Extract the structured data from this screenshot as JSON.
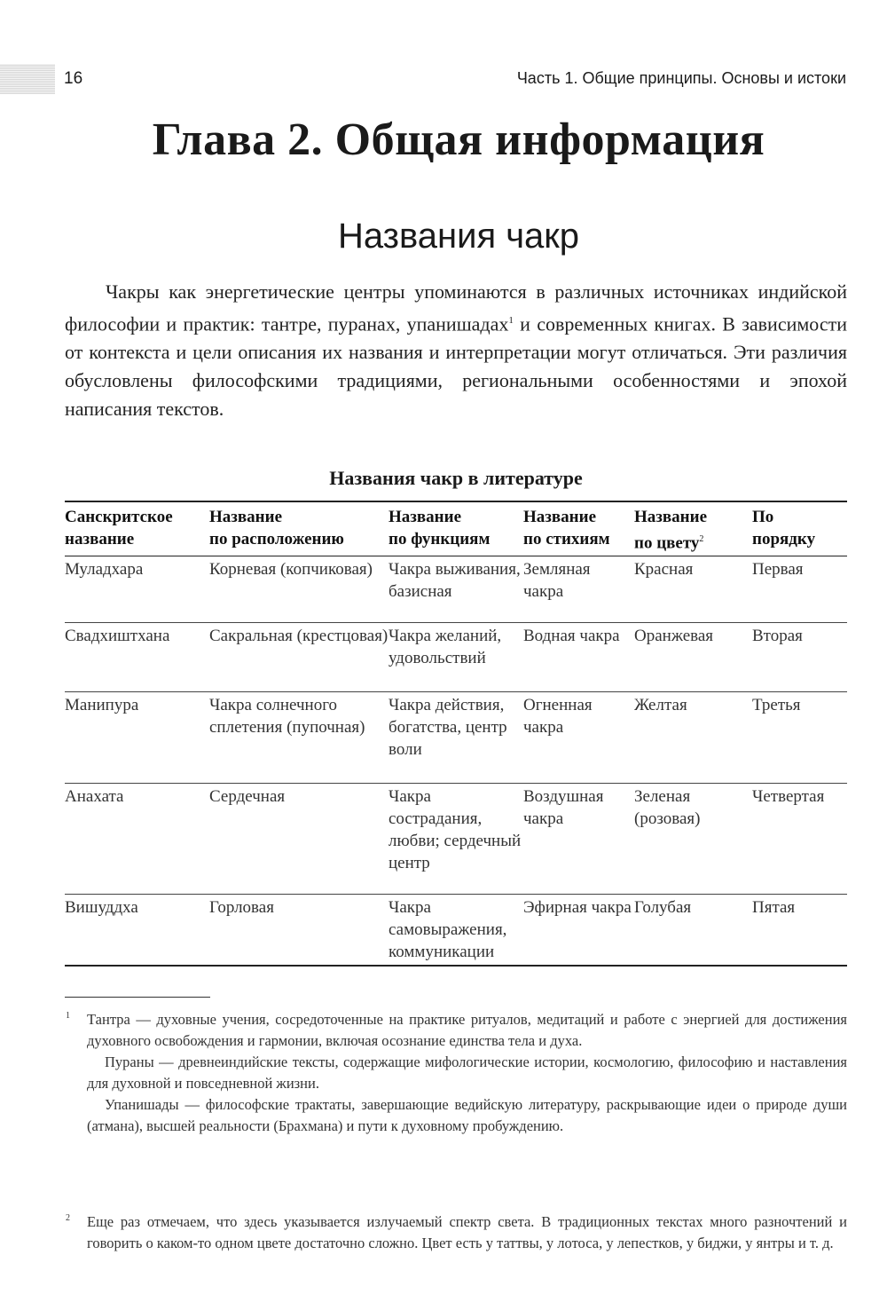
{
  "header": {
    "page_number": "16",
    "running_title": "Часть 1.  Общие принципы. Основы и истоки"
  },
  "chapter_title": "Глава 2. Общая информация",
  "section_title": "Названия чакр",
  "paragraph": {
    "text": "Чакры как энергетические центры упоминаются в различных источниках индийской философии и практик: тантре, пуранах, упанишадах",
    "footnote_ref": "1",
    "text_after": " и современных книгах. В зависимости от контекста и цели описания их названия и интерпретации могут отличаться. Эти различия обусловлены философскими традициями, региональными особенностями и эпохой написания текстов."
  },
  "table": {
    "caption": "Названия чакр в литературе",
    "headers": [
      {
        "line1": "Санскритское",
        "line2": "название"
      },
      {
        "line1": "Название",
        "line2": "по расположению"
      },
      {
        "line1": "Название",
        "line2": "по функциям"
      },
      {
        "line1": "Название",
        "line2": "по стихиям"
      },
      {
        "line1": "Название",
        "line2": "по цвету",
        "footnote_ref": "2"
      },
      {
        "line1": "По",
        "line2": "порядку"
      }
    ],
    "rows": [
      [
        "Муладхара",
        "Корневая (копчиковая)",
        "Чакра выживания, базисная",
        "Земляная чакра",
        "Красная",
        "Первая"
      ],
      [
        "Свадхиштхана",
        "Сакральная (крестцовая)",
        "Чакра желаний, удовольствий",
        "Водная чакра",
        "Оранжевая",
        "Вторая"
      ],
      [
        "Манипура",
        "Чакра солнечного сплетения (пупочная)",
        "Чакра действия, богатства, центр воли",
        "Огненная чакра",
        "Желтая",
        "Третья"
      ],
      [
        "Анахата",
        "Сердечная",
        "Чакра сострадания, любви; сердечный центр",
        "Воздушная чакра",
        "Зеленая (розовая)",
        "Четвертая"
      ],
      [
        "Вишуддха",
        "Горловая",
        "Чакра самовыражения, коммуникации",
        "Эфирная чакра",
        "Голубая",
        "Пятая"
      ]
    ]
  },
  "footnotes": [
    {
      "mark": "1",
      "paragraphs": [
        "Тантра — духовные учения, сосредоточенные на практике ритуалов, медитаций и работе с энергией для достижения духовного освобождения и гармонии, включая осознание единства тела и духа.",
        "Пураны — древнеиндийские тексты, содержащие мифологические истории, космологию, философию и наставления для духовной и повседневной жизни.",
        "Упанишады — философские трактаты, завершающие ведийскую литературу, раскрывающие идеи о природе души (атмана), высшей реальности (Брахмана) и пути к духовному пробуждению."
      ]
    },
    {
      "mark": "2",
      "paragraphs": [
        "Еще раз отмечаем, что здесь указывается излучаемый спектр света. В традиционных текстах много разночтений и говорить о каком-то одном цвете достаточно сложно. Цвет есть у таттвы, у лотоса, у лепестков, у биджи, у янтры и т. д."
      ]
    }
  ]
}
